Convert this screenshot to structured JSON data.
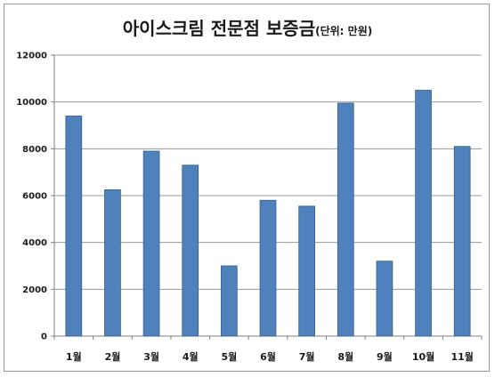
{
  "chart_data": {
    "type": "bar",
    "title": "아이스크림 전문점 보증금",
    "subtitle": "(단위: 만원)",
    "xlabel": "",
    "ylabel": "",
    "categories": [
      "1월",
      "2월",
      "3월",
      "4월",
      "5월",
      "6월",
      "7월",
      "8월",
      "9월",
      "10월",
      "11월"
    ],
    "values": [
      9400,
      6250,
      7900,
      7300,
      3000,
      5800,
      5550,
      9950,
      3200,
      10500,
      8100
    ],
    "ylim": [
      0,
      12000
    ],
    "yticks": [
      0,
      2000,
      4000,
      6000,
      8000,
      10000,
      12000
    ],
    "grid": true,
    "legend": "none",
    "colors": {
      "bar": "#4f81bd",
      "bar_edge": "#385d8a",
      "plot_bg": "#ffffff",
      "grid": "#9a9a9a"
    }
  }
}
